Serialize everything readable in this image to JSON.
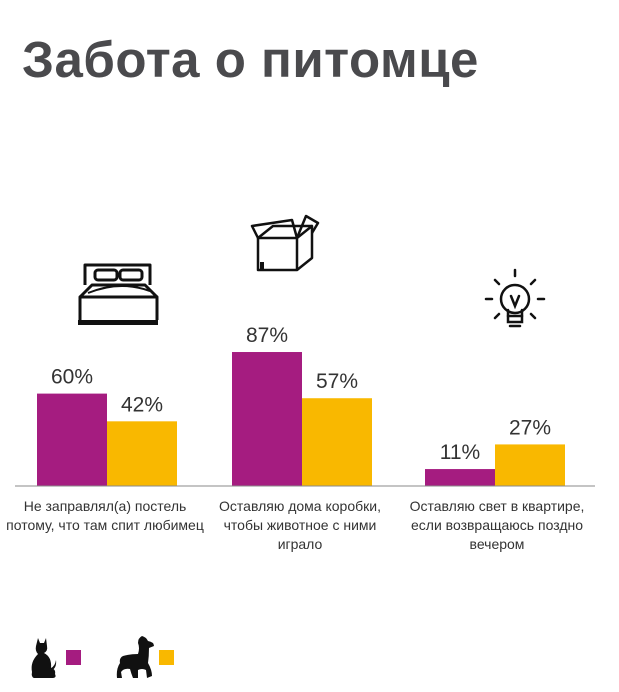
{
  "title": "Забота о питомце",
  "chart_data": {
    "type": "bar",
    "categories": [
      "Не заправлял(а) постель потому, что там спит любимец",
      "Оставляю дома коробки, чтобы животное с ними играло",
      "Оставляю свет в квартире, если возвращаюсь поздно вечером"
    ],
    "series": [
      {
        "values": [
          60,
          87,
          11
        ],
        "color": "#a51c80",
        "icon": "cat-icon"
      },
      {
        "values": [
          42,
          57,
          27
        ],
        "color": "#f9b800",
        "icon": "dog-icon"
      }
    ],
    "value_labels": [
      [
        "60%",
        "87%",
        "11%"
      ],
      [
        "42%",
        "57%",
        "27%"
      ]
    ],
    "category_icons": [
      "bed-icon",
      "box-icon",
      "lightbulb-icon"
    ],
    "ylim": [
      0,
      100
    ],
    "grid": false,
    "legend": "bottom-left"
  }
}
